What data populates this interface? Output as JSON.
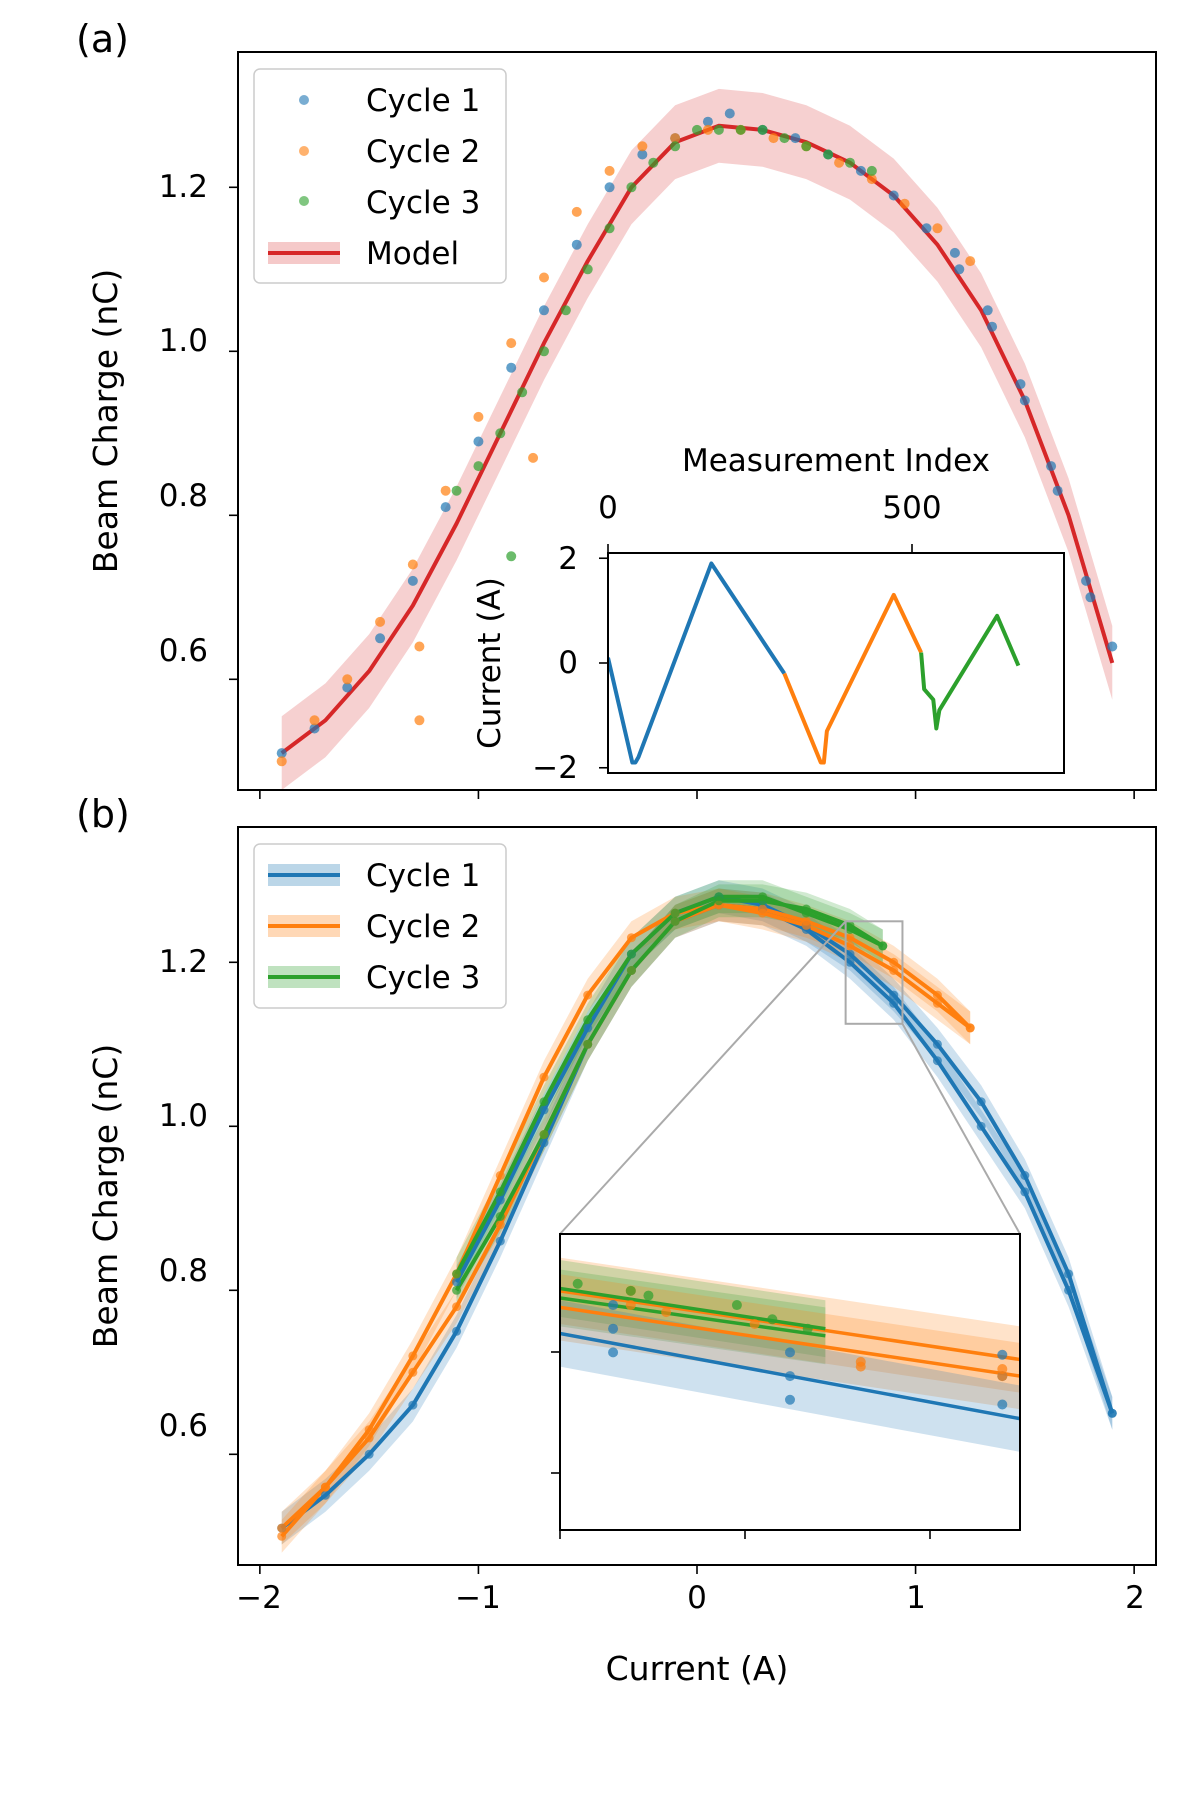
{
  "chart_data": [
    {
      "id": "a",
      "panel_label": "(a)",
      "type": "scatter",
      "title": "",
      "xlabel": "",
      "ylabel": "Beam Charge (nC)",
      "xlim": [
        -2.1,
        2.1
      ],
      "ylim": [
        0.465,
        1.365
      ],
      "xticks": [
        -2,
        -1,
        0,
        1,
        2
      ],
      "yticks": [
        0.6,
        0.8,
        1.0,
        1.2
      ],
      "ytick_labels": [
        "0.6",
        "0.8",
        "1.0",
        "1.2"
      ],
      "legend": {
        "placement": "upper-left",
        "entries": [
          {
            "label": "Cycle 1",
            "kind": "marker",
            "color": "#1f77b4"
          },
          {
            "label": "Cycle 2",
            "kind": "marker",
            "color": "#ff7f0e"
          },
          {
            "label": "Cycle 3",
            "kind": "marker",
            "color": "#2ca02c"
          },
          {
            "label": "Model",
            "kind": "line",
            "color": "#d62728"
          }
        ]
      },
      "series": [
        {
          "name": "Model",
          "color": "#d62728",
          "band_halfwidth": 0.045,
          "x": [
            -1.9,
            -1.7,
            -1.5,
            -1.3,
            -1.1,
            -0.9,
            -0.7,
            -0.5,
            -0.3,
            -0.1,
            0.1,
            0.3,
            0.5,
            0.7,
            0.9,
            1.1,
            1.3,
            1.5,
            1.7,
            1.9
          ],
          "y": [
            0.51,
            0.55,
            0.61,
            0.69,
            0.79,
            0.9,
            1.01,
            1.11,
            1.2,
            1.255,
            1.275,
            1.27,
            1.255,
            1.23,
            1.19,
            1.13,
            1.05,
            0.94,
            0.8,
            0.62
          ]
        },
        {
          "name": "Cycle 1",
          "color": "#1f77b4",
          "marker": "point",
          "x": [
            -1.9,
            -1.75,
            -1.6,
            -1.45,
            -1.3,
            -1.15,
            -1.0,
            -0.85,
            -0.7,
            -0.55,
            -0.4,
            -0.25,
            -0.1,
            0.05,
            0.15,
            0.3,
            0.45,
            0.6,
            0.75,
            0.9,
            1.05,
            1.2,
            1.35,
            1.5,
            1.65,
            1.8,
            1.9,
            1.78,
            1.62,
            1.48,
            1.33,
            1.18
          ],
          "y": [
            0.51,
            0.54,
            0.59,
            0.65,
            0.72,
            0.81,
            0.89,
            0.98,
            1.05,
            1.13,
            1.2,
            1.24,
            1.26,
            1.28,
            1.29,
            1.27,
            1.26,
            1.24,
            1.22,
            1.19,
            1.15,
            1.1,
            1.03,
            0.94,
            0.83,
            0.7,
            0.64,
            0.72,
            0.86,
            0.96,
            1.05,
            1.12
          ]
        },
        {
          "name": "Cycle 2",
          "color": "#ff7f0e",
          "marker": "point",
          "x": [
            -1.9,
            -1.75,
            -1.6,
            -1.45,
            -1.3,
            -1.15,
            -1.0,
            -0.85,
            -0.7,
            -0.55,
            -0.4,
            -0.25,
            -0.1,
            0.05,
            0.2,
            0.35,
            0.5,
            0.65,
            0.8,
            0.95,
            1.1,
            1.25,
            -1.27,
            -1.27,
            -0.75
          ],
          "y": [
            0.5,
            0.55,
            0.6,
            0.67,
            0.74,
            0.83,
            0.92,
            1.01,
            1.09,
            1.17,
            1.22,
            1.25,
            1.26,
            1.27,
            1.27,
            1.26,
            1.25,
            1.23,
            1.21,
            1.18,
            1.15,
            1.11,
            0.55,
            0.64,
            0.87
          ]
        },
        {
          "name": "Cycle 3",
          "color": "#2ca02c",
          "marker": "point",
          "x": [
            -1.1,
            -1.0,
            -0.9,
            -0.8,
            -0.7,
            -0.6,
            -0.5,
            -0.4,
            -0.3,
            -0.2,
            -0.1,
            0.0,
            0.1,
            0.2,
            0.3,
            0.4,
            0.5,
            0.6,
            0.7,
            0.8,
            -0.85
          ],
          "y": [
            0.83,
            0.86,
            0.9,
            0.95,
            1.0,
            1.05,
            1.1,
            1.15,
            1.2,
            1.23,
            1.25,
            1.27,
            1.27,
            1.27,
            1.27,
            1.26,
            1.25,
            1.24,
            1.23,
            1.22,
            0.75
          ]
        }
      ],
      "inset": {
        "type": "line",
        "xlabel": "Measurement Index",
        "xlabel_position": "top",
        "ylabel": "Current (A)",
        "xlim": [
          0,
          750
        ],
        "ylim": [
          -2.1,
          2.1
        ],
        "xticks": [
          0,
          500
        ],
        "yticks": [
          -2,
          0,
          2
        ],
        "ytick_labels": [
          "−2",
          "0",
          "2"
        ],
        "series": [
          {
            "name": "Cycle 1",
            "color": "#1f77b4",
            "x": [
              0,
              40,
              45,
              50,
              170,
              290
            ],
            "y": [
              0.1,
              -1.9,
              -1.9,
              -1.8,
              1.9,
              -0.2
            ]
          },
          {
            "name": "Cycle 2",
            "color": "#ff7f0e",
            "x": [
              290,
              350,
              355,
              360,
              470,
              515
            ],
            "y": [
              -0.2,
              -1.9,
              -1.9,
              -1.3,
              1.3,
              0.2
            ]
          },
          {
            "name": "Cycle 3",
            "color": "#2ca02c",
            "x": [
              515,
              520,
              535,
              540,
              545,
              640,
              675
            ],
            "y": [
              0.2,
              -0.5,
              -0.7,
              -1.25,
              -0.9,
              0.9,
              -0.05
            ]
          }
        ]
      }
    },
    {
      "id": "b",
      "panel_label": "(b)",
      "type": "line",
      "title": "",
      "xlabel": "Current (A)",
      "ylabel": "Beam Charge (nC)",
      "xlim": [
        -2.1,
        2.1
      ],
      "ylim": [
        0.465,
        1.365
      ],
      "xticks": [
        -2,
        -1,
        0,
        1,
        2
      ],
      "xtick_labels": [
        "−2",
        "−1",
        "0",
        "1",
        "2"
      ],
      "yticks": [
        0.6,
        0.8,
        1.0,
        1.2
      ],
      "ytick_labels": [
        "0.6",
        "0.8",
        "1.0",
        "1.2"
      ],
      "legend": {
        "placement": "upper-left",
        "entries": [
          {
            "label": "Cycle 1",
            "kind": "line",
            "color": "#1f77b4"
          },
          {
            "label": "Cycle 2",
            "kind": "line",
            "color": "#ff7f0e"
          },
          {
            "label": "Cycle 3",
            "kind": "line",
            "color": "#2ca02c"
          }
        ]
      },
      "series": [
        {
          "name": "Cycle 1 down",
          "color": "#1f77b4",
          "band_halfwidth": 0.02,
          "x": [
            -1.9,
            -1.7,
            -1.5,
            -1.3,
            -1.1,
            -0.9,
            -0.7,
            -0.5,
            -0.3,
            -0.1,
            0.1,
            0.3,
            0.5,
            0.7,
            0.9,
            1.1,
            1.3,
            1.5,
            1.7,
            1.9
          ],
          "y": [
            0.51,
            0.55,
            0.6,
            0.66,
            0.75,
            0.86,
            0.98,
            1.1,
            1.19,
            1.25,
            1.27,
            1.265,
            1.24,
            1.2,
            1.15,
            1.08,
            1.0,
            0.92,
            0.8,
            0.65
          ]
        },
        {
          "name": "Cycle 1 up",
          "color": "#1f77b4",
          "band_halfwidth": 0.02,
          "x": [
            1.9,
            1.7,
            1.5,
            1.3,
            1.1,
            0.9,
            0.7,
            0.5,
            0.3,
            0.1,
            -0.1,
            -0.3,
            -0.5,
            -0.7,
            -0.9,
            -1.1
          ],
          "y": [
            0.65,
            0.82,
            0.94,
            1.03,
            1.1,
            1.16,
            1.21,
            1.245,
            1.27,
            1.28,
            1.26,
            1.21,
            1.12,
            1.02,
            0.91,
            0.81
          ]
        },
        {
          "name": "Cycle 2 down",
          "color": "#ff7f0e",
          "band_halfwidth": 0.02,
          "x": [
            -1.9,
            -1.7,
            -1.5,
            -1.3,
            -1.1,
            -0.9,
            -0.7,
            -0.5,
            -0.3,
            -0.1,
            0.1,
            0.3,
            0.5,
            0.7,
            0.9,
            1.1,
            1.25
          ],
          "y": [
            0.5,
            0.56,
            0.63,
            0.72,
            0.82,
            0.94,
            1.06,
            1.16,
            1.23,
            1.26,
            1.27,
            1.26,
            1.245,
            1.22,
            1.19,
            1.15,
            1.12
          ]
        },
        {
          "name": "Cycle 2 up",
          "color": "#ff7f0e",
          "band_halfwidth": 0.02,
          "x": [
            1.25,
            1.1,
            0.9,
            0.7,
            0.5,
            0.3,
            0.1,
            -0.1,
            -0.3,
            -0.5,
            -0.7,
            -0.9,
            -1.1,
            -1.3,
            -1.5,
            -1.7,
            -1.9
          ],
          "y": [
            1.12,
            1.16,
            1.2,
            1.23,
            1.25,
            1.265,
            1.27,
            1.25,
            1.19,
            1.1,
            0.99,
            0.88,
            0.78,
            0.7,
            0.62,
            0.56,
            0.51
          ]
        },
        {
          "name": "Cycle 3 down",
          "color": "#2ca02c",
          "band_halfwidth": 0.02,
          "x": [
            -1.1,
            -0.9,
            -0.7,
            -0.5,
            -0.3,
            -0.1,
            0.1,
            0.3,
            0.5,
            0.7,
            0.85
          ],
          "y": [
            0.82,
            0.92,
            1.03,
            1.13,
            1.21,
            1.26,
            1.28,
            1.28,
            1.26,
            1.24,
            1.22
          ]
        },
        {
          "name": "Cycle 3 up",
          "color": "#2ca02c",
          "band_halfwidth": 0.02,
          "x": [
            0.85,
            0.7,
            0.5,
            0.3,
            0.1,
            -0.1,
            -0.3,
            -0.5,
            -0.7,
            -0.9,
            -1.1
          ],
          "y": [
            1.22,
            1.245,
            1.265,
            1.275,
            1.275,
            1.25,
            1.19,
            1.1,
            0.99,
            0.89,
            0.8
          ]
        }
      ],
      "zoom_region": {
        "xlim": [
          0.68,
          0.94
        ],
        "ylim": [
          1.125,
          1.25
        ]
      },
      "inset": {
        "type": "line",
        "xlabel": "",
        "ylabel": "",
        "xlim": [
          0.68,
          0.94
        ],
        "ylim": [
          1.125,
          1.25
        ],
        "series": [
          {
            "name": "Cycle 2 upper",
            "color": "#ff7f0e",
            "band_halfwidth": 0.014,
            "x": [
              0.68,
              0.94
            ],
            "y": [
              1.226,
              1.197
            ]
          },
          {
            "name": "Cycle 3 upper",
            "color": "#2ca02c",
            "band_halfwidth": 0.012,
            "x": [
              0.68,
              0.83
            ],
            "y": [
              1.227,
              1.21
            ]
          },
          {
            "name": "Cycle 3 lower",
            "color": "#2ca02c",
            "band_halfwidth": 0.012,
            "x": [
              0.68,
              0.83
            ],
            "y": [
              1.223,
              1.207
            ]
          },
          {
            "name": "Cycle 2 lower",
            "color": "#ff7f0e",
            "band_halfwidth": 0.014,
            "x": [
              0.68,
              0.94
            ],
            "y": [
              1.219,
              1.19
            ]
          },
          {
            "name": "Cycle 1",
            "color": "#1f77b4",
            "band_halfwidth": 0.014,
            "x": [
              0.68,
              0.94
            ],
            "y": [
              1.208,
              1.172
            ]
          }
        ],
        "points": [
          {
            "color": "#1f77b4",
            "x": [
              0.71,
              0.71,
              0.71,
              0.81,
              0.81,
              0.81,
              0.93,
              0.93,
              0.93
            ],
            "y": [
              1.22,
              1.21,
              1.2,
              1.2,
              1.19,
              1.18,
              1.199,
              1.19,
              1.178
            ]
          },
          {
            "color": "#ff7f0e",
            "x": [
              0.72,
              0.72,
              0.74,
              0.79,
              0.85,
              0.85,
              0.93,
              0.93
            ],
            "y": [
              1.226,
              1.22,
              1.217,
              1.212,
              1.196,
              1.194,
              1.193,
              1.19
            ]
          },
          {
            "color": "#2ca02c",
            "x": [
              0.69,
              0.72,
              0.73,
              0.78,
              0.8,
              0.82
            ],
            "y": [
              1.229,
              1.226,
              1.224,
              1.22,
              1.214,
              1.21
            ]
          }
        ]
      }
    }
  ]
}
